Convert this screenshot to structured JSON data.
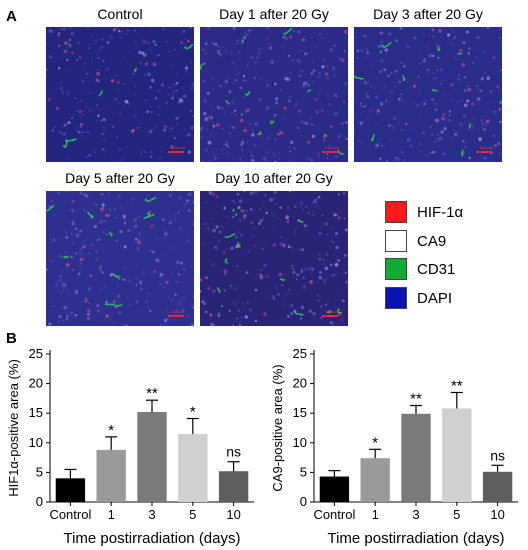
{
  "panel_a": {
    "letter": "A",
    "images": [
      {
        "title": "Control",
        "tone": "#23257f"
      },
      {
        "title": "Day 1 after 20 Gy",
        "tone": "#2b2a86"
      },
      {
        "title": "Day 3 after 20 Gy",
        "tone": "#2a2c8a"
      },
      {
        "title": "Day 5 after 20 Gy",
        "tone": "#2e3090"
      },
      {
        "title": "Day 10 after 20 Gy",
        "tone": "#2a2478"
      }
    ],
    "legend": [
      {
        "label": "HIF-1α",
        "color": "#ff1a1a"
      },
      {
        "label": "CA9",
        "color": "#ffffff"
      },
      {
        "label": "CD31",
        "color": "#11aa33"
      },
      {
        "label": "DAPI",
        "color": "#0a12b0"
      }
    ]
  },
  "panel_b": {
    "letter": "B"
  },
  "chart_data": [
    {
      "type": "bar",
      "ylabel": "HIF1α-positive area (%)",
      "xlabel": "Time postirradiation (days)",
      "categories": [
        "Control",
        "1",
        "3",
        "5",
        "10"
      ],
      "values": [
        4.0,
        8.8,
        15.2,
        11.5,
        5.2
      ],
      "errors": [
        1.5,
        2.2,
        2.0,
        2.6,
        1.6
      ],
      "annotations": [
        "",
        "*",
        "**",
        "*",
        "ns"
      ],
      "colors": [
        "#000000",
        "#9a9a9a",
        "#7a7a7a",
        "#cfcfcf",
        "#5e5e5e"
      ],
      "ylim": [
        0,
        25
      ],
      "yticks": [
        "0",
        "5",
        "10",
        "15",
        "20",
        "25"
      ]
    },
    {
      "type": "bar",
      "ylabel": "CA9-positive area (%)",
      "xlabel": "Time postirradiation (days)",
      "categories": [
        "Control",
        "1",
        "3",
        "5",
        "10"
      ],
      "values": [
        4.3,
        7.4,
        14.9,
        15.8,
        5.1
      ],
      "errors": [
        1.0,
        1.5,
        1.4,
        2.7,
        1.1
      ],
      "annotations": [
        "",
        "*",
        "**",
        "**",
        "ns"
      ],
      "colors": [
        "#000000",
        "#9a9a9a",
        "#7a7a7a",
        "#cfcfcf",
        "#5e5e5e"
      ],
      "ylim": [
        0,
        25
      ],
      "yticks": [
        "0",
        "5",
        "10",
        "15",
        "20",
        "25"
      ]
    }
  ]
}
